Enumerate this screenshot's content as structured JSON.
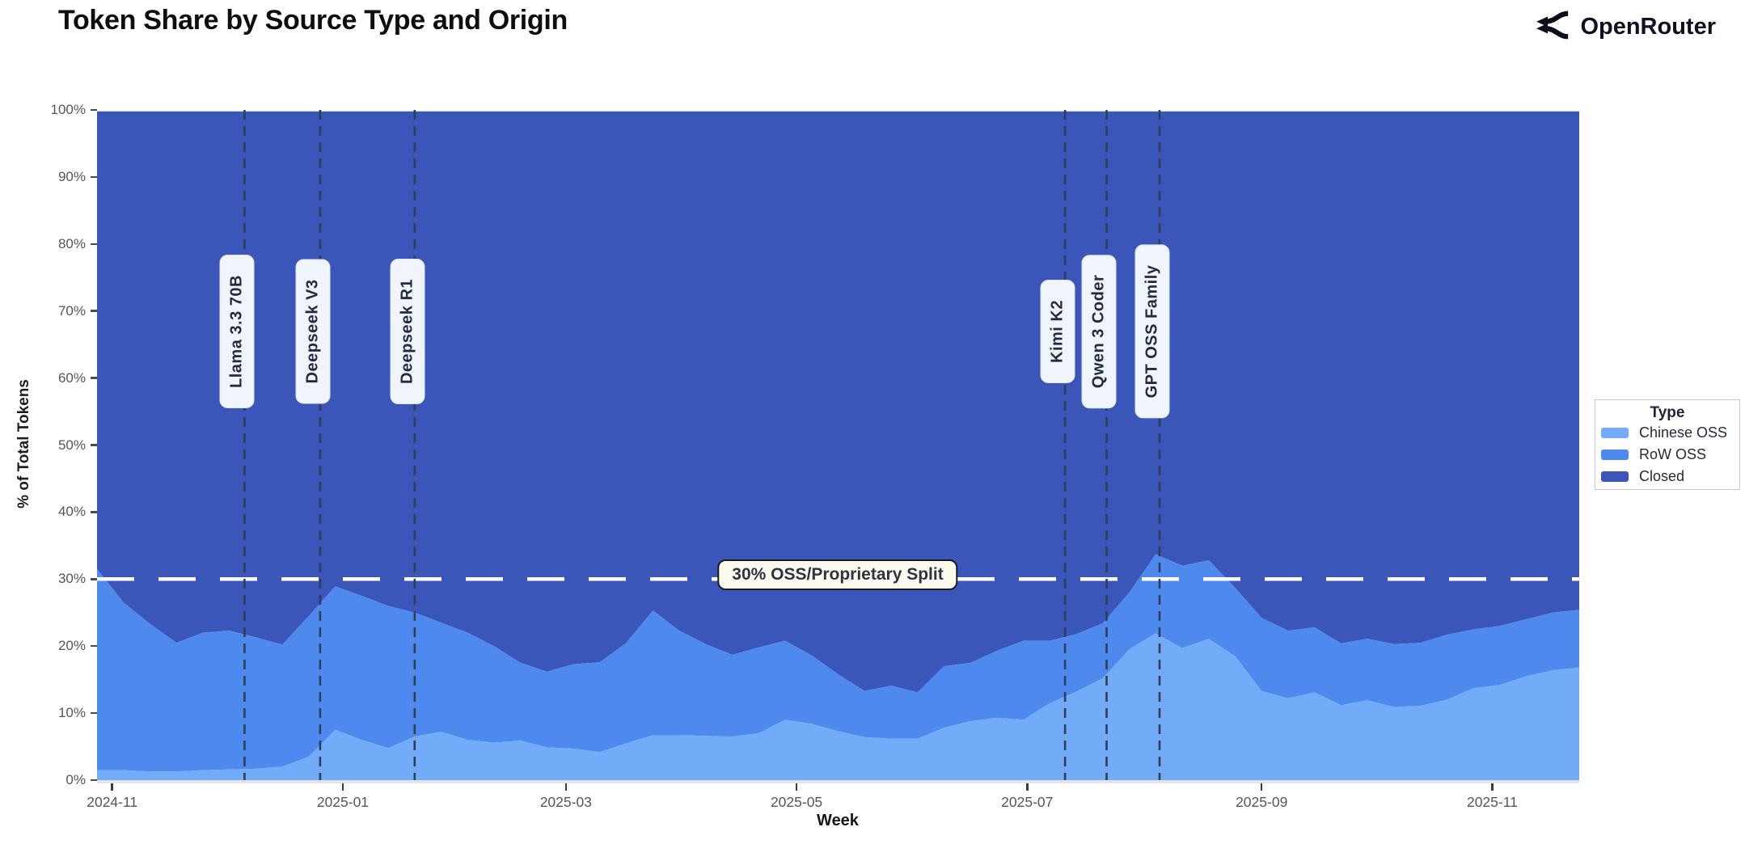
{
  "header": {
    "title": "Token Share by Source Type and Origin",
    "brand": "OpenRouter"
  },
  "colors": {
    "chinese_oss": "#72ABF8",
    "row_oss": "#4E8AEE",
    "closed": "#3A56B9",
    "event_line": "#2F3D59",
    "split_line": "#FFFFFF"
  },
  "axes": {
    "y_label": "% of Total Tokens",
    "x_label": "Week",
    "y_ticks": [
      {
        "value": 0,
        "label": "0%"
      },
      {
        "value": 10,
        "label": "10%"
      },
      {
        "value": 20,
        "label": "20%"
      },
      {
        "value": 30,
        "label": "30%"
      },
      {
        "value": 40,
        "label": "40%"
      },
      {
        "value": 50,
        "label": "50%"
      },
      {
        "value": 60,
        "label": "60%"
      },
      {
        "value": 70,
        "label": "70%"
      },
      {
        "value": 80,
        "label": "80%"
      },
      {
        "value": 90,
        "label": "90%"
      },
      {
        "value": 100,
        "label": "100%"
      }
    ],
    "x_ticks": [
      {
        "date": "2024-11-01",
        "label": "2024-11"
      },
      {
        "date": "2025-01-01",
        "label": "2025-01"
      },
      {
        "date": "2025-03-01",
        "label": "2025-03"
      },
      {
        "date": "2025-05-01",
        "label": "2025-05"
      },
      {
        "date": "2025-07-01",
        "label": "2025-07"
      },
      {
        "date": "2025-09-01",
        "label": "2025-09"
      },
      {
        "date": "2025-11-01",
        "label": "2025-11"
      }
    ]
  },
  "events": [
    {
      "label": "Llama 3.3 70B",
      "date": "2024-12-06"
    },
    {
      "label": "Deepseek V3",
      "date": "2024-12-26"
    },
    {
      "label": "Deepseek R1",
      "date": "2025-01-20"
    },
    {
      "label": "Kimi K2",
      "date": "2025-07-11"
    },
    {
      "label": "Qwen 3 Coder",
      "date": "2025-07-22"
    },
    {
      "label": "GPT OSS Family",
      "date": "2025-08-05"
    }
  ],
  "split_line": {
    "label": "30% OSS/Proprietary Split",
    "value": 30
  },
  "legend": {
    "title": "Type",
    "entries": [
      {
        "label": "Chinese OSS",
        "color": "#72ABF8"
      },
      {
        "label": "RoW OSS",
        "color": "#4E8AEE"
      },
      {
        "label": "Closed",
        "color": "#3A56B9"
      }
    ]
  },
  "chart_data": {
    "type": "area",
    "stacked": true,
    "title": "Token Share by Source Type and Origin",
    "xlabel": "Week",
    "ylabel": "% of Total Tokens",
    "ylim": [
      0,
      100
    ],
    "legend_position": "right",
    "grid": false,
    "x": [
      "2024-10-28",
      "2024-11-04",
      "2024-11-11",
      "2024-11-18",
      "2024-11-25",
      "2024-12-02",
      "2024-12-09",
      "2024-12-16",
      "2024-12-23",
      "2024-12-30",
      "2025-01-06",
      "2025-01-13",
      "2025-01-20",
      "2025-01-27",
      "2025-02-03",
      "2025-02-10",
      "2025-02-17",
      "2025-02-24",
      "2025-03-03",
      "2025-03-10",
      "2025-03-17",
      "2025-03-24",
      "2025-03-31",
      "2025-04-07",
      "2025-04-14",
      "2025-04-21",
      "2025-04-28",
      "2025-05-05",
      "2025-05-12",
      "2025-05-19",
      "2025-05-26",
      "2025-06-02",
      "2025-06-09",
      "2025-06-16",
      "2025-06-23",
      "2025-06-30",
      "2025-07-07",
      "2025-07-14",
      "2025-07-21",
      "2025-07-28",
      "2025-08-04",
      "2025-08-11",
      "2025-08-18",
      "2025-08-25",
      "2025-09-01",
      "2025-09-08",
      "2025-09-15",
      "2025-09-22",
      "2025-09-29",
      "2025-10-06",
      "2025-10-13",
      "2025-10-20",
      "2025-10-27",
      "2025-11-03",
      "2025-11-10",
      "2025-11-17",
      "2025-11-24"
    ],
    "series": [
      {
        "name": "Chinese OSS",
        "color": "#72ABF8",
        "values": [
          1.5,
          1.5,
          1.3,
          1.3,
          1.5,
          1.6,
          1.7,
          2.0,
          3.5,
          7.5,
          6.0,
          4.8,
          6.5,
          7.2,
          6.0,
          5.6,
          5.9,
          4.9,
          4.7,
          4.2,
          5.5,
          6.7,
          6.7,
          6.6,
          6.5,
          7.0,
          9.0,
          8.4,
          7.3,
          6.4,
          6.2,
          6.2,
          7.8,
          8.8,
          9.3,
          9.0,
          11.5,
          13.2,
          15.2,
          19.5,
          21.9,
          19.7,
          21.1,
          18.5,
          13.3,
          12.2,
          13.1,
          11.2,
          11.9,
          10.9,
          11.1,
          12.0,
          13.7,
          14.2,
          15.5,
          16.4,
          16.8
        ]
      },
      {
        "name": "RoW OSS",
        "color": "#4E8AEE",
        "values": [
          30.0,
          25.0,
          22.0,
          19.2,
          20.5,
          20.7,
          19.6,
          18.2,
          21.0,
          21.4,
          21.5,
          21.2,
          18.5,
          16.3,
          16.0,
          14.4,
          11.6,
          11.3,
          12.6,
          13.4,
          15.0,
          18.6,
          15.6,
          13.7,
          12.2,
          12.8,
          11.8,
          10.2,
          8.5,
          6.9,
          7.9,
          6.9,
          9.2,
          8.7,
          10.0,
          11.8,
          9.3,
          8.6,
          8.2,
          8.5,
          11.8,
          12.3,
          11.7,
          10.2,
          10.9,
          10.1,
          9.7,
          9.2,
          9.2,
          9.4,
          9.4,
          9.7,
          8.8,
          8.8,
          8.5,
          8.6,
          8.6
        ]
      },
      {
        "name": "Closed",
        "color": "#3A56B9",
        "values": [
          68.5,
          73.5,
          76.7,
          79.5,
          78.0,
          77.7,
          78.7,
          79.8,
          75.5,
          71.1,
          72.5,
          74.0,
          75.0,
          76.5,
          78.0,
          80.0,
          82.5,
          83.8,
          82.7,
          82.4,
          79.5,
          74.7,
          77.7,
          79.7,
          81.3,
          80.2,
          79.2,
          81.4,
          84.2,
          86.7,
          85.9,
          86.9,
          83.0,
          82.5,
          80.7,
          79.2,
          79.2,
          78.2,
          76.6,
          72.0,
          66.3,
          68.0,
          67.2,
          71.3,
          75.8,
          77.7,
          77.2,
          79.6,
          78.9,
          79.7,
          79.5,
          78.3,
          77.5,
          77.0,
          76.0,
          75.0,
          74.6
        ]
      }
    ],
    "annotations": {
      "hline": {
        "value": 30,
        "label": "30% OSS/Proprietary Split",
        "style": "white dashed"
      },
      "vlines": [
        {
          "date": "2024-12-06",
          "label": "Llama 3.3 70B"
        },
        {
          "date": "2024-12-26",
          "label": "Deepseek V3"
        },
        {
          "date": "2025-01-20",
          "label": "Deepseek R1"
        },
        {
          "date": "2025-07-11",
          "label": "Kimi K2"
        },
        {
          "date": "2025-07-22",
          "label": "Qwen 3 Coder"
        },
        {
          "date": "2025-08-05",
          "label": "GPT OSS Family"
        }
      ]
    }
  }
}
